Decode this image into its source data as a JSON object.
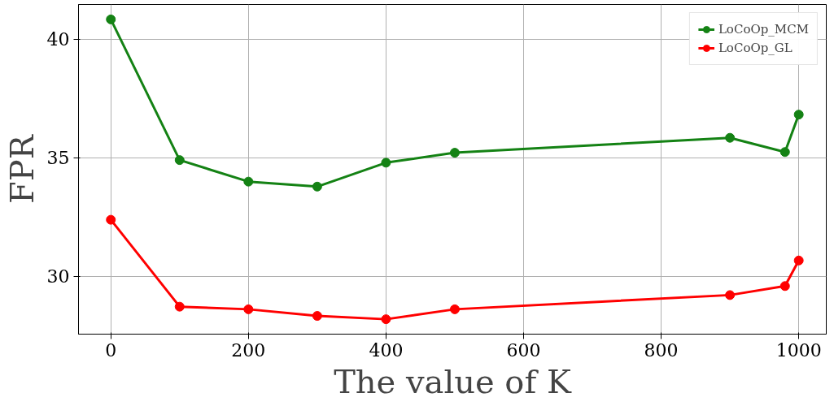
{
  "chart_data": {
    "type": "line",
    "xlabel": "The value of K",
    "ylabel": "FPR",
    "x": [
      0,
      100,
      200,
      300,
      400,
      500,
      900,
      980,
      1000
    ],
    "series": [
      {
        "name": "LoCoOp_MCM",
        "color": "#148214",
        "values": [
          40.84,
          34.9,
          33.99,
          33.78,
          34.79,
          35.21,
          35.84,
          35.24,
          36.82
        ]
      },
      {
        "name": "LoCoOp_GL",
        "color": "#ff0000",
        "values": [
          32.38,
          28.71,
          28.6,
          28.32,
          28.18,
          28.6,
          29.2,
          29.58,
          30.66
        ]
      }
    ],
    "xlim": [
      -47,
      1040
    ],
    "ylim": [
      27.55,
      41.47
    ],
    "xticks": [
      0,
      200,
      400,
      600,
      800,
      1000
    ],
    "yticks": [
      30,
      35,
      40
    ],
    "grid": true,
    "legend": "top right",
    "marker": "circle",
    "line_style": "solid"
  }
}
